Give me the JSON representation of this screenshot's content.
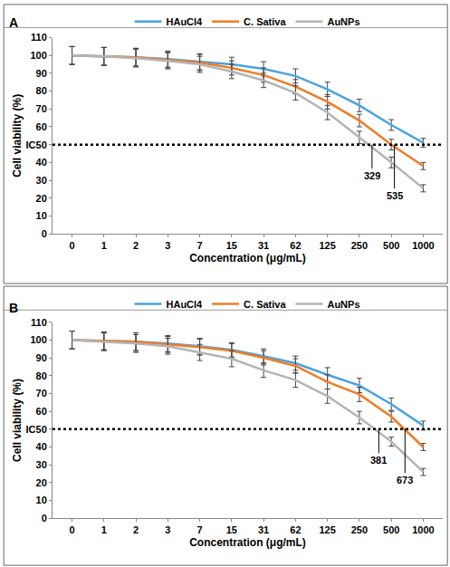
{
  "chart_data": [
    {
      "type": "line",
      "title": "A",
      "x_label": "Concentration (μg/mL)",
      "y_label": "Cell viability (%)",
      "categories": [
        0,
        1,
        2,
        3,
        7,
        15,
        31,
        62,
        125,
        250,
        500,
        1000
      ],
      "series": [
        {
          "name": "HAuCl4",
          "color": "#4aa3df",
          "values": [
            100,
            99.5,
            99,
            98,
            96.5,
            95,
            92.5,
            88.5,
            81,
            72,
            61,
            51
          ],
          "errors": [
            5,
            5,
            5,
            4.5,
            4.5,
            4,
            4,
            4,
            4,
            3.5,
            3,
            2.5
          ]
        },
        {
          "name": "C. Sativa",
          "color": "#f07c23",
          "values": [
            100,
            99.5,
            99,
            97.5,
            96,
            93,
            89,
            82.5,
            74,
            63.5,
            50,
            38
          ],
          "errors": [
            5,
            5,
            5,
            4.5,
            4.5,
            4,
            4,
            4,
            4,
            3.5,
            3,
            2
          ]
        },
        {
          "name": "AuNPs",
          "color": "#b4b4b4",
          "values": [
            100,
            99.5,
            98.5,
            97,
            95,
            91,
            86,
            79,
            68,
            54,
            40,
            25.5
          ],
          "errors": [
            5,
            5,
            5,
            4.5,
            4.5,
            4,
            4,
            4,
            4,
            3.5,
            3,
            2
          ]
        }
      ],
      "ylim": [
        0,
        110
      ],
      "yticks": [
        0,
        10,
        20,
        30,
        40,
        {
          "value": 50,
          "label": "IC50"
        },
        60,
        70,
        80,
        90,
        100,
        110
      ],
      "reference_line": {
        "y": 50
      },
      "annotations": [
        {
          "text": "329",
          "x": 329
        },
        {
          "text": "535",
          "x": 535
        }
      ],
      "legend": "top",
      "grid": false
    },
    {
      "type": "line",
      "title": "B",
      "x_label": "Concentration (μg/mL)",
      "y_label": "Cell viability (%)",
      "categories": [
        0,
        1,
        2,
        3,
        7,
        15,
        31,
        62,
        125,
        250,
        500,
        1000
      ],
      "series": [
        {
          "name": "HAuCl4",
          "color": "#4aa3df",
          "values": [
            100,
            99.5,
            99,
            98,
            96.5,
            94.5,
            91,
            87,
            80.5,
            74.5,
            64,
            52
          ],
          "errors": [
            5,
            5,
            5,
            4.5,
            4.5,
            4,
            4,
            4,
            4,
            4,
            3.5,
            2.5
          ]
        },
        {
          "name": "C. Sativa",
          "color": "#f07c23",
          "values": [
            100,
            99.5,
            99,
            97.5,
            96,
            94,
            90,
            85.5,
            76.5,
            69.5,
            57,
            40
          ],
          "errors": [
            5,
            5,
            5,
            4.5,
            4.5,
            4,
            4,
            4,
            4,
            4,
            3,
            2
          ]
        },
        {
          "name": "AuNPs",
          "color": "#b4b4b4",
          "values": [
            100,
            99,
            98,
            96.5,
            93,
            89.5,
            83,
            77.5,
            68.5,
            56.5,
            43,
            26
          ],
          "errors": [
            5,
            5,
            5,
            4.5,
            4.5,
            4.5,
            4,
            4,
            4,
            3.5,
            2.5,
            2
          ]
        }
      ],
      "ylim": [
        0,
        110
      ],
      "yticks": [
        0,
        10,
        20,
        30,
        40,
        {
          "value": 50,
          "label": "IC50"
        },
        60,
        70,
        80,
        90,
        100,
        110
      ],
      "reference_line": {
        "y": 50
      },
      "annotations": [
        {
          "text": "381",
          "x": 381
        },
        {
          "text": "673",
          "x": 673
        }
      ],
      "legend": "top",
      "grid": false
    }
  ]
}
